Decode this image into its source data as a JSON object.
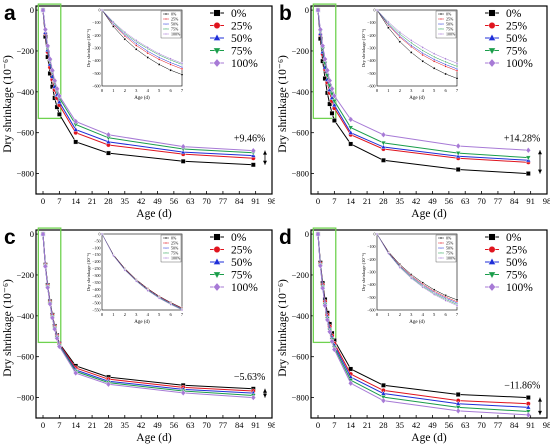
{
  "chart_data": [
    {
      "type": "line",
      "panel_label": "a",
      "xlabel": "Age (d)",
      "ylabel": "Dry shrinkage (10⁻⁶)",
      "xticks": [
        0,
        7,
        14,
        21,
        28,
        35,
        42,
        49,
        56,
        63,
        70,
        77,
        84,
        91,
        98
      ],
      "yticks": [
        0,
        -200,
        -400,
        -600,
        -800
      ],
      "xlim": [
        -3,
        98
      ],
      "ylim": [
        -900,
        20
      ],
      "x": [
        0,
        1,
        2,
        3,
        4,
        5,
        6,
        7,
        14,
        28,
        60,
        90
      ],
      "series": [
        {
          "name": "0%",
          "values": [
            0,
            -130,
            -230,
            -310,
            -375,
            -430,
            -475,
            -510,
            -645,
            -700,
            -740,
            -757
          ]
        },
        {
          "name": "25%",
          "values": [
            0,
            -115,
            -205,
            -280,
            -340,
            -390,
            -430,
            -465,
            -600,
            -660,
            -705,
            -725
          ]
        },
        {
          "name": "50%",
          "values": [
            0,
            -110,
            -195,
            -265,
            -325,
            -375,
            -415,
            -450,
            -585,
            -645,
            -695,
            -712
          ]
        },
        {
          "name": "75%",
          "values": [
            0,
            -100,
            -185,
            -250,
            -305,
            -355,
            -395,
            -430,
            -560,
            -625,
            -680,
            -698
          ]
        },
        {
          "name": "100%",
          "values": [
            0,
            -95,
            -175,
            -240,
            -295,
            -345,
            -385,
            -420,
            -545,
            -610,
            -668,
            -688
          ]
        }
      ],
      "annotation": "+9.46%",
      "inset": {
        "xlabel": "Age (d)",
        "ylabel": "Dry shrinkage (10⁻⁶)",
        "xticks": [
          0,
          1,
          2,
          3,
          4,
          5,
          6,
          7
        ],
        "yticks": [
          0,
          -100,
          -200,
          -300,
          -400,
          -500,
          -600
        ],
        "ylim": [
          -600,
          0
        ]
      }
    },
    {
      "type": "line",
      "panel_label": "b",
      "xlabel": "Age (d)",
      "ylabel": "Dry shrinkage (10⁻⁶)",
      "xticks": [
        0,
        7,
        14,
        21,
        28,
        35,
        42,
        49,
        56,
        63,
        70,
        77,
        84,
        91,
        98
      ],
      "yticks": [
        0,
        -200,
        -400,
        -600,
        -800
      ],
      "xlim": [
        -3,
        98
      ],
      "ylim": [
        -900,
        20
      ],
      "x": [
        0,
        1,
        2,
        3,
        4,
        5,
        6,
        7,
        14,
        28,
        60,
        90
      ],
      "series": [
        {
          "name": "0%",
          "values": [
            0,
            -140,
            -250,
            -335,
            -405,
            -460,
            -505,
            -540,
            -655,
            -735,
            -780,
            -800
          ]
        },
        {
          "name": "25%",
          "values": [
            0,
            -120,
            -215,
            -290,
            -355,
            -405,
            -445,
            -480,
            -610,
            -680,
            -725,
            -745
          ]
        },
        {
          "name": "50%",
          "values": [
            0,
            -115,
            -205,
            -280,
            -340,
            -390,
            -430,
            -465,
            -600,
            -670,
            -715,
            -735
          ]
        },
        {
          "name": "75%",
          "values": [
            0,
            -105,
            -190,
            -260,
            -320,
            -370,
            -410,
            -445,
            -575,
            -650,
            -700,
            -722
          ]
        },
        {
          "name": "100%",
          "values": [
            0,
            -95,
            -175,
            -240,
            -295,
            -345,
            -385,
            -420,
            -535,
            -610,
            -665,
            -686
          ]
        }
      ],
      "annotation": "+14.28%",
      "inset": {
        "xlabel": "Age (d)",
        "ylabel": "Dry shrinkage (10⁻⁶)",
        "xticks": [
          0,
          1,
          2,
          3,
          4,
          5,
          6,
          7
        ],
        "yticks": [
          0,
          -100,
          -200,
          -300,
          -400,
          -500,
          -600
        ],
        "ylim": [
          -600,
          0
        ]
      }
    },
    {
      "type": "line",
      "panel_label": "c",
      "xlabel": "Age (d)",
      "ylabel": "Dry shrinkage (10⁻⁶)",
      "xticks": [
        0,
        7,
        14,
        21,
        28,
        35,
        42,
        49,
        56,
        63,
        70,
        77,
        84,
        91,
        98
      ],
      "yticks": [
        0,
        -200,
        -400,
        -600,
        -800
      ],
      "xlim": [
        -3,
        98
      ],
      "ylim": [
        -900,
        20
      ],
      "x": [
        0,
        1,
        2,
        3,
        4,
        5,
        6,
        7,
        14,
        28,
        60,
        90
      ],
      "series": [
        {
          "name": "0%",
          "values": [
            0,
            -150,
            -250,
            -330,
            -395,
            -450,
            -495,
            -535,
            -645,
            -700,
            -740,
            -757
          ]
        },
        {
          "name": "25%",
          "values": [
            0,
            -152,
            -253,
            -333,
            -398,
            -453,
            -498,
            -538,
            -655,
            -710,
            -750,
            -768
          ]
        },
        {
          "name": "50%",
          "values": [
            0,
            -154,
            -256,
            -336,
            -402,
            -457,
            -502,
            -542,
            -665,
            -720,
            -760,
            -778
          ]
        },
        {
          "name": "75%",
          "values": [
            0,
            -156,
            -259,
            -339,
            -406,
            -461,
            -506,
            -546,
            -672,
            -727,
            -768,
            -790
          ]
        },
        {
          "name": "100%",
          "values": [
            0,
            -158,
            -262,
            -342,
            -410,
            -465,
            -510,
            -550,
            -680,
            -735,
            -777,
            -800
          ]
        }
      ],
      "annotation": "−5.63%",
      "inset": {
        "xlabel": "Age (d)",
        "ylabel": "Dry shrinkage (10⁻⁶)",
        "xticks": [
          0,
          1,
          2,
          3,
          4,
          5,
          6,
          7
        ],
        "yticks": [
          0,
          -50,
          -100,
          -150,
          -200,
          -250,
          -300,
          -350,
          -400,
          -450,
          -500,
          -550
        ],
        "ylim": [
          -550,
          0
        ]
      }
    },
    {
      "type": "line",
      "panel_label": "d",
      "xlabel": "Age (d)",
      "ylabel": "Dry shrinkage (10⁻⁶)",
      "xticks": [
        0,
        7,
        14,
        21,
        28,
        35,
        42,
        49,
        56,
        63,
        70,
        77,
        84,
        91,
        98
      ],
      "yticks": [
        0,
        -200,
        -400,
        -600,
        -800
      ],
      "xlim": [
        -3,
        98
      ],
      "ylim": [
        -900,
        20
      ],
      "x": [
        0,
        1,
        2,
        3,
        4,
        5,
        6,
        7,
        14,
        28,
        60,
        90
      ],
      "series": [
        {
          "name": "0%",
          "values": [
            0,
            -140,
            -240,
            -320,
            -385,
            -440,
            -485,
            -520,
            -660,
            -740,
            -785,
            -800
          ]
        },
        {
          "name": "25%",
          "values": [
            0,
            -145,
            -248,
            -330,
            -396,
            -452,
            -497,
            -535,
            -685,
            -765,
            -815,
            -830
          ]
        },
        {
          "name": "50%",
          "values": [
            0,
            -148,
            -253,
            -337,
            -404,
            -461,
            -506,
            -545,
            -700,
            -780,
            -830,
            -848
          ]
        },
        {
          "name": "75%",
          "values": [
            0,
            -152,
            -259,
            -344,
            -413,
            -470,
            -516,
            -556,
            -715,
            -798,
            -848,
            -868
          ]
        },
        {
          "name": "100%",
          "values": [
            0,
            -155,
            -265,
            -350,
            -420,
            -478,
            -525,
            -565,
            -730,
            -815,
            -865,
            -885
          ]
        }
      ],
      "annotation": "−11.86%",
      "inset": {
        "xlabel": "Age (d)",
        "ylabel": "Dry shrinkage (10⁻⁶)",
        "xticks": [
          0,
          1,
          2,
          3,
          4,
          5,
          6,
          7
        ],
        "yticks": [
          0,
          -100,
          -200,
          -300,
          -400,
          -500,
          -600
        ],
        "ylim": [
          -600,
          0
        ]
      }
    }
  ],
  "style": {
    "series_colors": [
      "#000000",
      "#e0141e",
      "#1f2fd8",
      "#1a9d4a",
      "#a77ad6"
    ],
    "series_markers": [
      "square",
      "circle",
      "triangle-up",
      "triangle-down",
      "diamond"
    ],
    "highlight_box_color": "#6fd24f",
    "marker_outline": "#ffffff"
  }
}
